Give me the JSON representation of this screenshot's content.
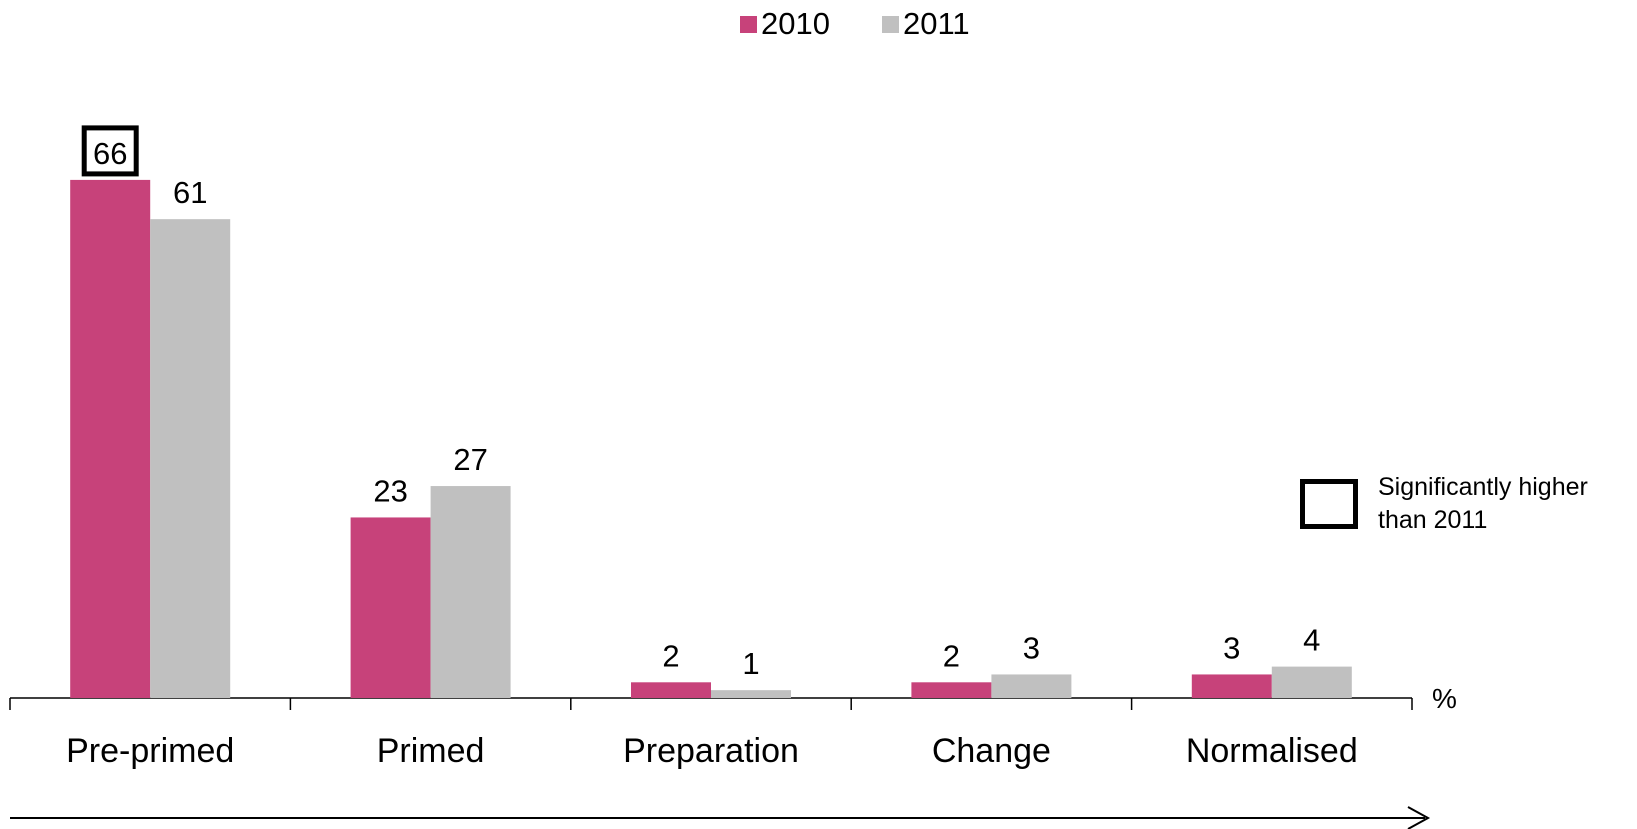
{
  "chart_data": {
    "type": "bar",
    "categories": [
      "Pre-primed",
      "Primed",
      "Preparation",
      "Change",
      "Normalised"
    ],
    "series": [
      {
        "name": "2010",
        "values": [
          66,
          23,
          2,
          2,
          3
        ],
        "color": "#c7427a"
      },
      {
        "name": "2011",
        "values": [
          61,
          27,
          1,
          3,
          4
        ],
        "color": "#c0c0c0"
      }
    ],
    "ylim": [
      0,
      70
    ],
    "unit_label": "%",
    "grid": false,
    "legend_position": "top-center",
    "highlighted": [
      {
        "series": 0,
        "category": 0
      }
    ],
    "highlight_note": "Significantly higher than 2011"
  }
}
